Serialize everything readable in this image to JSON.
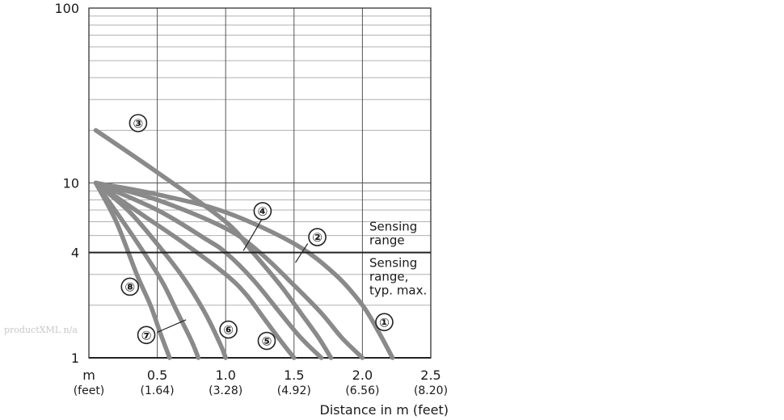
{
  "chart_data": {
    "type": "line",
    "y_scale": "log",
    "xlim": [
      0,
      2.5
    ],
    "ylim": [
      1,
      100
    ],
    "xlabel": "Distance in m (feet)",
    "ylabel": "",
    "grid": true,
    "x_ticks": [
      {
        "value": 0.5,
        "label": "0.5",
        "sub": "(1.64)"
      },
      {
        "value": 1.0,
        "label": "1.0",
        "sub": "(3.28)"
      },
      {
        "value": 1.5,
        "label": "1.5",
        "sub": "(4.92)"
      },
      {
        "value": 2.0,
        "label": "2.0",
        "sub": "(6.56)"
      },
      {
        "value": 2.5,
        "label": "2.5",
        "sub": "(8.20)"
      }
    ],
    "x_unit_label": "m",
    "x_unit_sub": "(feet)",
    "y_ticks": [
      {
        "value": 1,
        "label": "1"
      },
      {
        "value": 4,
        "label": "4"
      },
      {
        "value": 10,
        "label": "10"
      },
      {
        "value": 100,
        "label": "100"
      }
    ],
    "threshold": {
      "value": 4,
      "label_above": [
        "Sensing",
        "range"
      ],
      "label_below": [
        "Sensing",
        "range,",
        "typ. max."
      ]
    },
    "series": [
      {
        "name": "①",
        "x": [
          0.05,
          0.5,
          1.0,
          1.5,
          1.8,
          2.0,
          2.12,
          2.22
        ],
        "y": [
          10,
          8.6,
          6.8,
          4.5,
          3.0,
          2.0,
          1.4,
          1.0
        ]
      },
      {
        "name": "②",
        "x": [
          0.05,
          0.5,
          1.0,
          1.25,
          1.5,
          1.7,
          1.85,
          2.0
        ],
        "y": [
          10,
          8.0,
          5.5,
          4.0,
          2.6,
          1.8,
          1.3,
          1.0
        ]
      },
      {
        "name": "③",
        "x": [
          0.05,
          0.5,
          1.0,
          1.2,
          1.4,
          1.55,
          1.68,
          1.77
        ],
        "y": [
          20,
          11.5,
          6.0,
          4.0,
          2.6,
          1.8,
          1.3,
          1.0
        ]
      },
      {
        "name": "④",
        "x": [
          0.05,
          0.5,
          0.85,
          1.0,
          1.2,
          1.4,
          1.55,
          1.7
        ],
        "y": [
          10,
          7.0,
          4.8,
          4.0,
          2.8,
          1.8,
          1.3,
          1.0
        ]
      },
      {
        "name": "⑤",
        "x": [
          0.05,
          0.4,
          0.7,
          1.0,
          1.15,
          1.3,
          1.42,
          1.5
        ],
        "y": [
          10,
          6.5,
          4.5,
          3.0,
          2.3,
          1.6,
          1.2,
          1.0
        ]
      },
      {
        "name": "⑥",
        "x": [
          0.05,
          0.3,
          0.55,
          0.7,
          0.85,
          0.96,
          1.0
        ],
        "y": [
          10,
          6.8,
          4.0,
          2.8,
          1.8,
          1.2,
          1.0
        ]
      },
      {
        "name": "⑦",
        "x": [
          0.05,
          0.25,
          0.45,
          0.55,
          0.65,
          0.75,
          0.8
        ],
        "y": [
          10,
          6.0,
          3.5,
          2.6,
          1.8,
          1.25,
          1.0
        ]
      },
      {
        "name": "⑧",
        "x": [
          0.05,
          0.2,
          0.35,
          0.45,
          0.52,
          0.59
        ],
        "y": [
          10,
          6.0,
          3.0,
          2.0,
          1.4,
          1.0
        ]
      }
    ],
    "badges": [
      {
        "label": "①",
        "style": "outline",
        "x": 2.16,
        "y": 1.6
      },
      {
        "label": "②",
        "style": "outline",
        "x": 1.67,
        "y": 4.9
      },
      {
        "label": "③",
        "style": "outline",
        "x": 0.36,
        "y": 22
      },
      {
        "label": "④",
        "style": "outline",
        "x": 1.27,
        "y": 6.9
      },
      {
        "label": "⑤",
        "style": "outline",
        "x": 1.3,
        "y": 1.25
      },
      {
        "label": "⑥",
        "style": "outline",
        "x": 1.02,
        "y": 1.45
      },
      {
        "label": "⑦",
        "style": "outline",
        "x": 0.42,
        "y": 1.35
      },
      {
        "label": "⑧",
        "style": "filled",
        "x": 0.3,
        "y": 2.55
      }
    ],
    "leaders": [
      {
        "from": [
          1.27,
          6.3
        ],
        "to": [
          1.13,
          4.1
        ]
      },
      {
        "from": [
          1.6,
          4.5
        ],
        "to": [
          1.51,
          3.5
        ]
      },
      {
        "from": [
          0.5,
          1.4
        ],
        "to": [
          0.71,
          1.65
        ]
      }
    ]
  },
  "watermark": "productXML n/a",
  "colors": {
    "curve": "#8a8a8a",
    "grid": "#b0b0b0",
    "axis": "#222222"
  }
}
